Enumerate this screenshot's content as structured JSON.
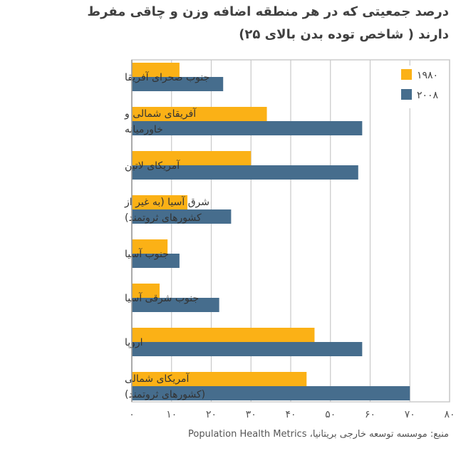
{
  "title_line1": "درصد جمعیتی که در هر منطقه اضافه وزن و چاقی مفرط",
  "title_line2": "دارند ( شاخص توده بدن بالای ۲۵)",
  "source": "منبع: موسسه توسعه خارجی بریتانیا، Population Health Metrics",
  "chart_data": {
    "type": "bar",
    "orientation": "horizontal",
    "title": "درصد جمعیتی که در هر منطقه اضافه وزن و چاقی مفرط دارند ( شاخص توده بدن بالای ۲۵)",
    "categories": [
      [
        "جنوب صحرای آفریقا"
      ],
      [
        "آفریقای شمالی و",
        "خاورمیانه"
      ],
      [
        "آمریکای لاتین"
      ],
      [
        "شرق آسیا (به غیر از",
        "کشورهای ثروتمند)"
      ],
      [
        "جنوب آسیا"
      ],
      [
        "جنوب شرقی آسیا"
      ],
      [
        "اروپا"
      ],
      [
        "آمریکای شمالی",
        "(کشورهای ثروتمند)"
      ]
    ],
    "series": [
      {
        "name": "۱۹۸۰",
        "color": "#FBB116",
        "values": [
          12,
          34,
          30,
          14,
          9,
          7,
          46,
          44
        ]
      },
      {
        "name": "۲۰۰۸",
        "color": "#466D8D",
        "values": [
          23,
          58,
          57,
          25,
          12,
          22,
          58,
          70
        ]
      }
    ],
    "xlim": [
      0,
      80
    ],
    "xticks": [
      0,
      10,
      20,
      30,
      40,
      50,
      60,
      70,
      80
    ],
    "xtick_labels": [
      "۰",
      "۱۰",
      "۲۰",
      "۳۰",
      "۴۰",
      "۵۰",
      "۶۰",
      "۷۰",
      "۸۰"
    ],
    "grid": true,
    "legend_position": "top-right"
  }
}
